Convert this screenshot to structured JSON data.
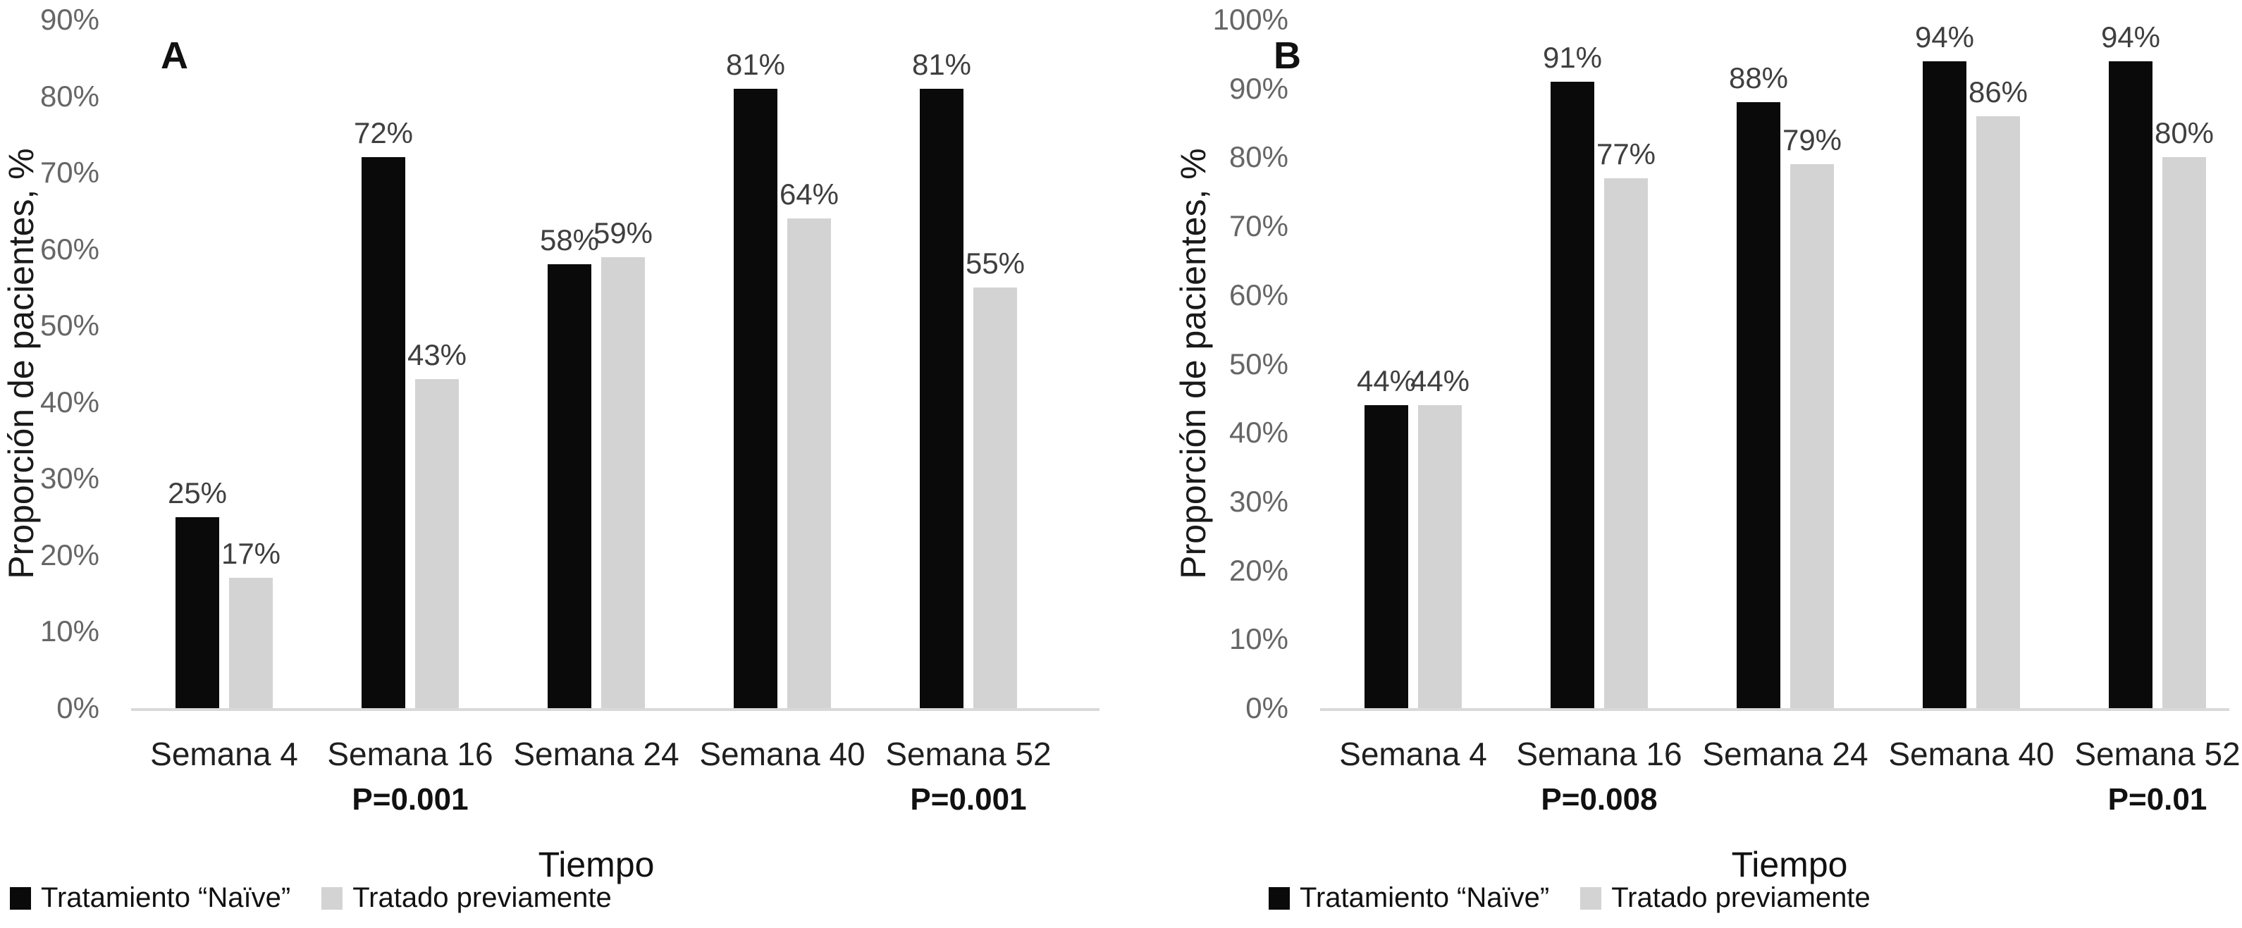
{
  "page": {
    "background_color": "#ffffff",
    "axis_line_color": "#d9d9d9",
    "tick_label_color": "#666666",
    "value_label_color": "#3f3f3f",
    "bar_black_color": "#0a0a0a",
    "bar_gray_color": "#d3d3d3"
  },
  "chart_data": [
    {
      "type": "bar",
      "panel_label": "A",
      "xlabel": "Tiempo",
      "ylabel": "Proporción de pacientes, %",
      "ylim": [
        0,
        90
      ],
      "ytick_step": 10,
      "ytick_labels": [
        "0%",
        "10%",
        "20%",
        "30%",
        "40%",
        "50%",
        "60%",
        "70%",
        "80%",
        "90%"
      ],
      "grid": false,
      "legend_position": "bottom",
      "categories": [
        "Semana 4",
        "Semana 16",
        "Semana 24",
        "Semana 40",
        "Semana 52"
      ],
      "series": [
        {
          "name": "Tratamiento “Naïve”",
          "color": "#0a0a0a",
          "values": [
            25,
            72,
            58,
            81,
            81
          ],
          "value_labels": [
            "25%",
            "72%",
            "58%",
            "81%",
            "81%"
          ]
        },
        {
          "name": "Tratado previamente",
          "color": "#d3d3d3",
          "values": [
            17,
            43,
            59,
            64,
            55
          ],
          "value_labels": [
            "17%",
            "43%",
            "59%",
            "64%",
            "55%"
          ]
        }
      ],
      "p_values": [
        {
          "category_index": 1,
          "category": "Semana 16",
          "label": "P=0.001"
        },
        {
          "category_index": 4,
          "category": "Semana 52",
          "label": "P=0.001"
        }
      ]
    },
    {
      "type": "bar",
      "panel_label": "B",
      "xlabel": "Tiempo",
      "ylabel": "Proporción de pacientes, %",
      "ylim": [
        0,
        100
      ],
      "ytick_step": 10,
      "ytick_labels": [
        "0%",
        "10%",
        "20%",
        "30%",
        "40%",
        "50%",
        "60%",
        "70%",
        "80%",
        "90%",
        "100%"
      ],
      "grid": false,
      "legend_position": "bottom",
      "categories": [
        "Semana 4",
        "Semana 16",
        "Semana 24",
        "Semana 40",
        "Semana 52"
      ],
      "series": [
        {
          "name": "Tratamiento “Naïve”",
          "color": "#0a0a0a",
          "values": [
            44,
            91,
            88,
            94,
            94
          ],
          "value_labels": [
            "44%",
            "91%",
            "88%",
            "94%",
            "94%"
          ]
        },
        {
          "name": "Tratado previamente",
          "color": "#d3d3d3",
          "values": [
            44,
            77,
            79,
            86,
            80
          ],
          "value_labels": [
            "44%",
            "77%",
            "79%",
            "86%",
            "80%"
          ]
        }
      ],
      "p_values": [
        {
          "category_index": 1,
          "category": "Semana 16",
          "label": "P=0.008"
        },
        {
          "category_index": 4,
          "category": "Semana 52",
          "label": "P=0.01"
        }
      ]
    }
  ]
}
